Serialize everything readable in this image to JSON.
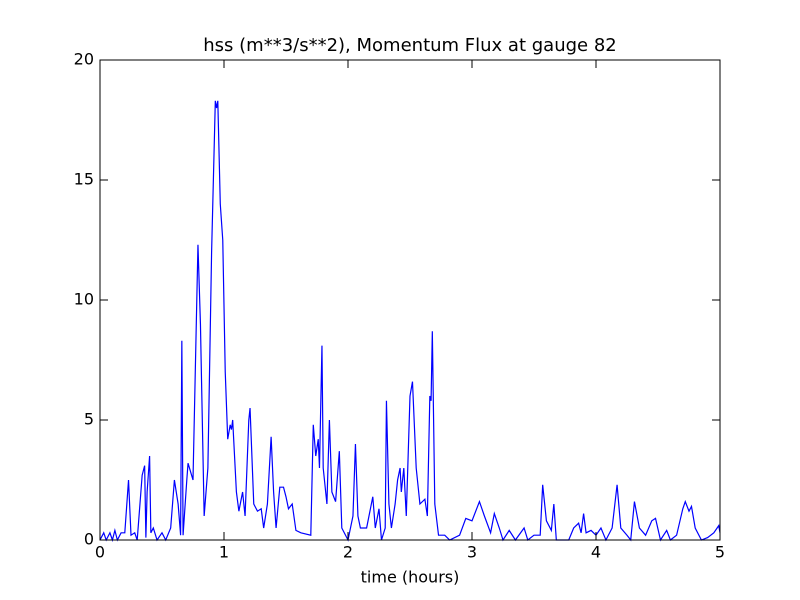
{
  "chart_data": {
    "type": "line",
    "title": "hss (m**3/s**2), Momentum Flux at gauge 82",
    "xlabel": "time (hours)",
    "xlim": [
      0,
      5
    ],
    "xticks": [
      0,
      1,
      2,
      3,
      4,
      5
    ],
    "ylim": [
      0,
      20
    ],
    "yticks": [
      0,
      5,
      10,
      15,
      20
    ],
    "hline": {
      "value": 0,
      "color": "#000000",
      "dash": true
    },
    "x": [
      0,
      0.03,
      0.05,
      0.08,
      0.1,
      0.12,
      0.14,
      0.17,
      0.2,
      0.23,
      0.25,
      0.28,
      0.3,
      0.34,
      0.36,
      0.37,
      0.38,
      0.4,
      0.41,
      0.43,
      0.46,
      0.5,
      0.53,
      0.57,
      0.6,
      0.63,
      0.65,
      0.66,
      0.67,
      0.7,
      0.71,
      0.75,
      0.79,
      0.81,
      0.84,
      0.87,
      0.9,
      0.93,
      0.94,
      0.95,
      0.97,
      0.99,
      1.01,
      1.03,
      1.05,
      1.06,
      1.07,
      1.1,
      1.12,
      1.15,
      1.17,
      1.2,
      1.21,
      1.24,
      1.27,
      1.3,
      1.32,
      1.35,
      1.38,
      1.4,
      1.42,
      1.45,
      1.48,
      1.5,
      1.52,
      1.55,
      1.58,
      1.62,
      1.7,
      1.72,
      1.74,
      1.76,
      1.77,
      1.79,
      1.8,
      1.83,
      1.85,
      1.87,
      1.9,
      1.93,
      1.95,
      2.0,
      2.04,
      2.06,
      2.08,
      2.1,
      2.15,
      2.2,
      2.22,
      2.25,
      2.27,
      2.3,
      2.31,
      2.33,
      2.35,
      2.38,
      2.4,
      2.42,
      2.43,
      2.45,
      2.47,
      2.5,
      2.52,
      2.55,
      2.58,
      2.62,
      2.64,
      2.66,
      2.67,
      2.68,
      2.7,
      2.73,
      2.78,
      2.82,
      2.9,
      2.95,
      3.0,
      3.06,
      3.1,
      3.15,
      3.18,
      3.22,
      3.25,
      3.3,
      3.35,
      3.42,
      3.45,
      3.5,
      3.55,
      3.57,
      3.6,
      3.64,
      3.66,
      3.68,
      3.78,
      3.82,
      3.86,
      3.88,
      3.9,
      3.92,
      3.96,
      4.0,
      4.04,
      4.08,
      4.13,
      4.17,
      4.2,
      4.25,
      4.28,
      4.31,
      4.35,
      4.4,
      4.45,
      4.48,
      4.52,
      4.57,
      4.6,
      4.65,
      4.7,
      4.72,
      4.75,
      4.77,
      4.8,
      4.85,
      4.9,
      4.95,
      4.99,
      5.0
    ],
    "series": [
      {
        "color": "#0000ff",
        "values": [
          0,
          0.3,
          0,
          0.3,
          0,
          0.4,
          0,
          0.3,
          0.3,
          2.5,
          0.2,
          0.3,
          0,
          2.7,
          3.1,
          0.1,
          2,
          3.5,
          0.3,
          0.5,
          0,
          0.3,
          0,
          0.5,
          2.5,
          1.5,
          0.2,
          8.3,
          0.2,
          2.5,
          3.2,
          2.5,
          12.3,
          9,
          1,
          3,
          12,
          18.3,
          18,
          18.3,
          14,
          12.5,
          7,
          4.2,
          4.8,
          4.6,
          5,
          2,
          1.2,
          2,
          1,
          5,
          5.5,
          1.5,
          1.2,
          1.3,
          0.5,
          1.5,
          4.3,
          2,
          0.5,
          2.2,
          2.2,
          1.8,
          1.3,
          1.5,
          0.4,
          0.3,
          0.2,
          4.8,
          3.5,
          4.2,
          3,
          8.1,
          3,
          1.5,
          5,
          2,
          1.6,
          3.7,
          0.5,
          0,
          1,
          4,
          1,
          0.5,
          0.5,
          1.8,
          0.5,
          1.3,
          0,
          0.5,
          5.8,
          1.5,
          0.5,
          1.5,
          2.5,
          3,
          2,
          3,
          1,
          6,
          6.6,
          3,
          1.5,
          1.7,
          1,
          6,
          5.8,
          8.7,
          1.5,
          0.2,
          0.2,
          0,
          0.2,
          0.9,
          0.8,
          1.6,
          1,
          0.3,
          1.1,
          0.5,
          0,
          0.4,
          0,
          0.5,
          0,
          0.2,
          0.2,
          2.3,
          0.8,
          0.4,
          1.5,
          0,
          0,
          0.5,
          0.7,
          0.3,
          1.1,
          0.3,
          0.4,
          0.2,
          0.5,
          0,
          0.5,
          2.3,
          0.5,
          0.2,
          0,
          1.6,
          0.5,
          0.2,
          0.8,
          0.9,
          0,
          0.4,
          0,
          0.2,
          1.3,
          1.6,
          1.2,
          1.4,
          0.5,
          0,
          0.1,
          0.3,
          0.6,
          0.3
        ]
      }
    ]
  }
}
